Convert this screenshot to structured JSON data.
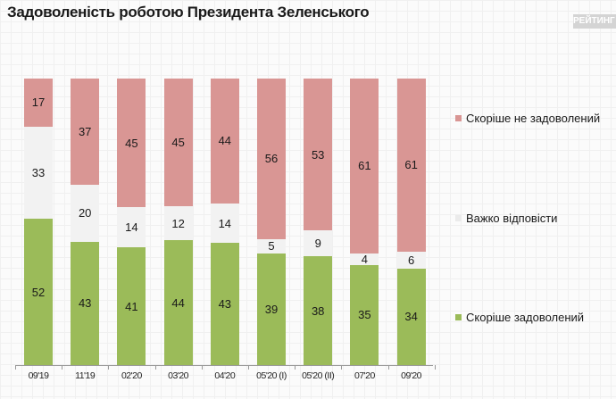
{
  "title": "Задоволеність роботою Президента Зеленського",
  "logo": "РЕЙТИНГ",
  "colors": {
    "not_satisfied": "#d99694",
    "hard_to_say": "#f2f2f2",
    "satisfied": "#9bbb59"
  },
  "legend": [
    {
      "label": "Скоріше не задоволений",
      "color": "#d99694"
    },
    {
      "label": "Важко відповісти",
      "color": "#f2f2f2"
    },
    {
      "label": "Скоріше задоволений",
      "color": "#9bbb59"
    }
  ],
  "chart_data": {
    "type": "bar",
    "stacked": true,
    "percent": true,
    "title": "Задоволеність роботою Президента Зеленського",
    "xlabel": "",
    "ylabel": "",
    "ylim": [
      0,
      100
    ],
    "grid": false,
    "legend_position": "right",
    "categories": [
      "09'19",
      "11'19",
      "02'20",
      "03'20",
      "04'20",
      "05'20 (I)",
      "05'20 (II)",
      "07'20",
      "09'20"
    ],
    "series": [
      {
        "name": "Скоріше задоволений",
        "color": "#9bbb59",
        "values": [
          52,
          43,
          41,
          44,
          43,
          39,
          38,
          35,
          34
        ]
      },
      {
        "name": "Важко відповісти",
        "color": "#f2f2f2",
        "values": [
          33,
          20,
          14,
          12,
          14,
          5,
          9,
          4,
          6
        ]
      },
      {
        "name": "Скоріше не задоволений",
        "color": "#d99694",
        "values": [
          17,
          37,
          45,
          45,
          44,
          56,
          53,
          61,
          61
        ]
      }
    ]
  }
}
